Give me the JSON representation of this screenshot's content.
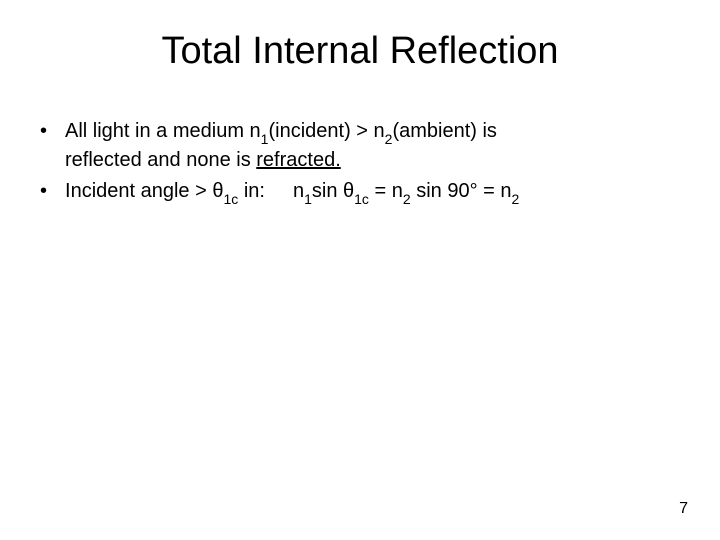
{
  "slide": {
    "title": "Total Internal Reflection",
    "title_fontsize": 38,
    "body_fontsize": 20,
    "text_color": "#000000",
    "background_color": "#ffffff",
    "bullets": [
      {
        "line1_pre": "All light in a medium n",
        "sub1": "1",
        "mid1": "(incident) > n",
        "sub2": "2",
        "mid2": "(ambient) is",
        "line2_pre": "reflected and none is ",
        "underlined": "refracted."
      },
      {
        "pre": "Incident angle > θ",
        "sub1": "1c",
        "mid1": " in:",
        "eq_n1": "n",
        "eq_sub1": "1",
        "eq_sin1": "sin θ",
        "eq_sub1c": "1c",
        "eq_eq1": " = n",
        "eq_sub2": "2",
        "eq_sin90": " sin 90° = n",
        "eq_sub2b": "2"
      }
    ],
    "page_number": "7"
  }
}
